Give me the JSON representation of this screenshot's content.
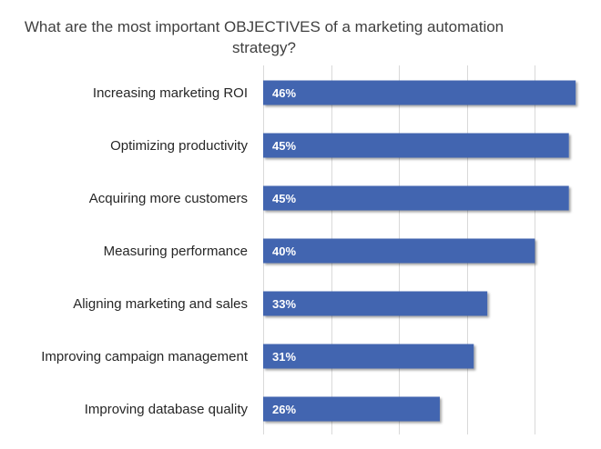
{
  "chart_data": {
    "type": "bar",
    "orientation": "horizontal",
    "title": "What are the most important OBJECTIVES of a marketing automation strategy?",
    "title_lines": [
      "What are the most important OBJECTIVES of a marketing automation",
      "strategy?"
    ],
    "categories": [
      "Increasing marketing ROI",
      "Optimizing productivity",
      "Acquiring more customers",
      "Measuring performance",
      "Aligning marketing and sales",
      "Improving campaign management",
      "Improving database quality"
    ],
    "values": [
      46,
      45,
      45,
      40,
      33,
      31,
      26
    ],
    "value_labels": [
      "46%",
      "45%",
      "45%",
      "40%",
      "33%",
      "31%",
      "26%"
    ],
    "unit": "%",
    "xlim": [
      0,
      50
    ],
    "xlabel": "",
    "ylabel": "",
    "grid": true,
    "legend": "none",
    "bar_color": "#4365B0",
    "label_color": "#ffffff"
  }
}
